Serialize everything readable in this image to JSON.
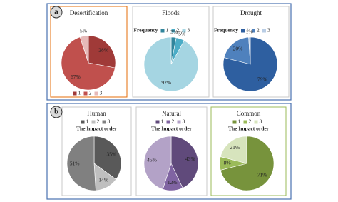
{
  "panel_labels": [
    "a",
    "b"
  ],
  "chart_data": [
    {
      "type": "pie",
      "title": "Desertification",
      "categories": [
        "1",
        "2",
        "3"
      ],
      "values": [
        28,
        67,
        5
      ],
      "value_labels": [
        "28%",
        "67%",
        "5%"
      ],
      "colors": [
        "#a03a38",
        "#c0504d",
        "#e6b9b8"
      ]
    },
    {
      "type": "pie",
      "title": "Floods",
      "legend_title": "Frequency",
      "categories": [
        "1",
        "2",
        "3"
      ],
      "values": [
        3,
        5,
        92
      ],
      "value_labels": [
        "3%",
        "5%",
        "92%"
      ],
      "colors": [
        "#31859c",
        "#4bacc6",
        "#a5d5e2"
      ]
    },
    {
      "type": "pie",
      "title": "Drought",
      "legend_title": "Frequency",
      "categories": [
        "1",
        "2",
        "3"
      ],
      "values": [
        79,
        20,
        1
      ],
      "value_labels": [
        "79%",
        "20%",
        "1%"
      ],
      "colors": [
        "#2e5fa0",
        "#4f81bd",
        "#b9cde5"
      ]
    },
    {
      "type": "pie",
      "title": "Human",
      "legend_subtitle": "The Impact order",
      "categories": [
        "1",
        "2",
        "3"
      ],
      "values": [
        35,
        14,
        51
      ],
      "value_labels": [
        "35%",
        "14%",
        "51%"
      ],
      "colors": [
        "#595959",
        "#bfbfbf",
        "#808080"
      ]
    },
    {
      "type": "pie",
      "title": "Natural",
      "legend_subtitle": "The Impact order",
      "categories": [
        "1",
        "2",
        "3"
      ],
      "values": [
        43,
        12,
        45
      ],
      "value_labels": [
        "43%",
        "12%",
        "45%"
      ],
      "colors": [
        "#604a7b",
        "#8064a2",
        "#b3a2c7"
      ]
    },
    {
      "type": "pie",
      "title": "Common",
      "legend_subtitle": "The Impact order",
      "categories": [
        "1",
        "2",
        "3"
      ],
      "values": [
        71,
        8,
        21
      ],
      "value_labels": [
        "71%",
        "8%",
        "21%"
      ],
      "colors": [
        "#77933c",
        "#9bbb59",
        "#d7e4bd"
      ]
    }
  ]
}
